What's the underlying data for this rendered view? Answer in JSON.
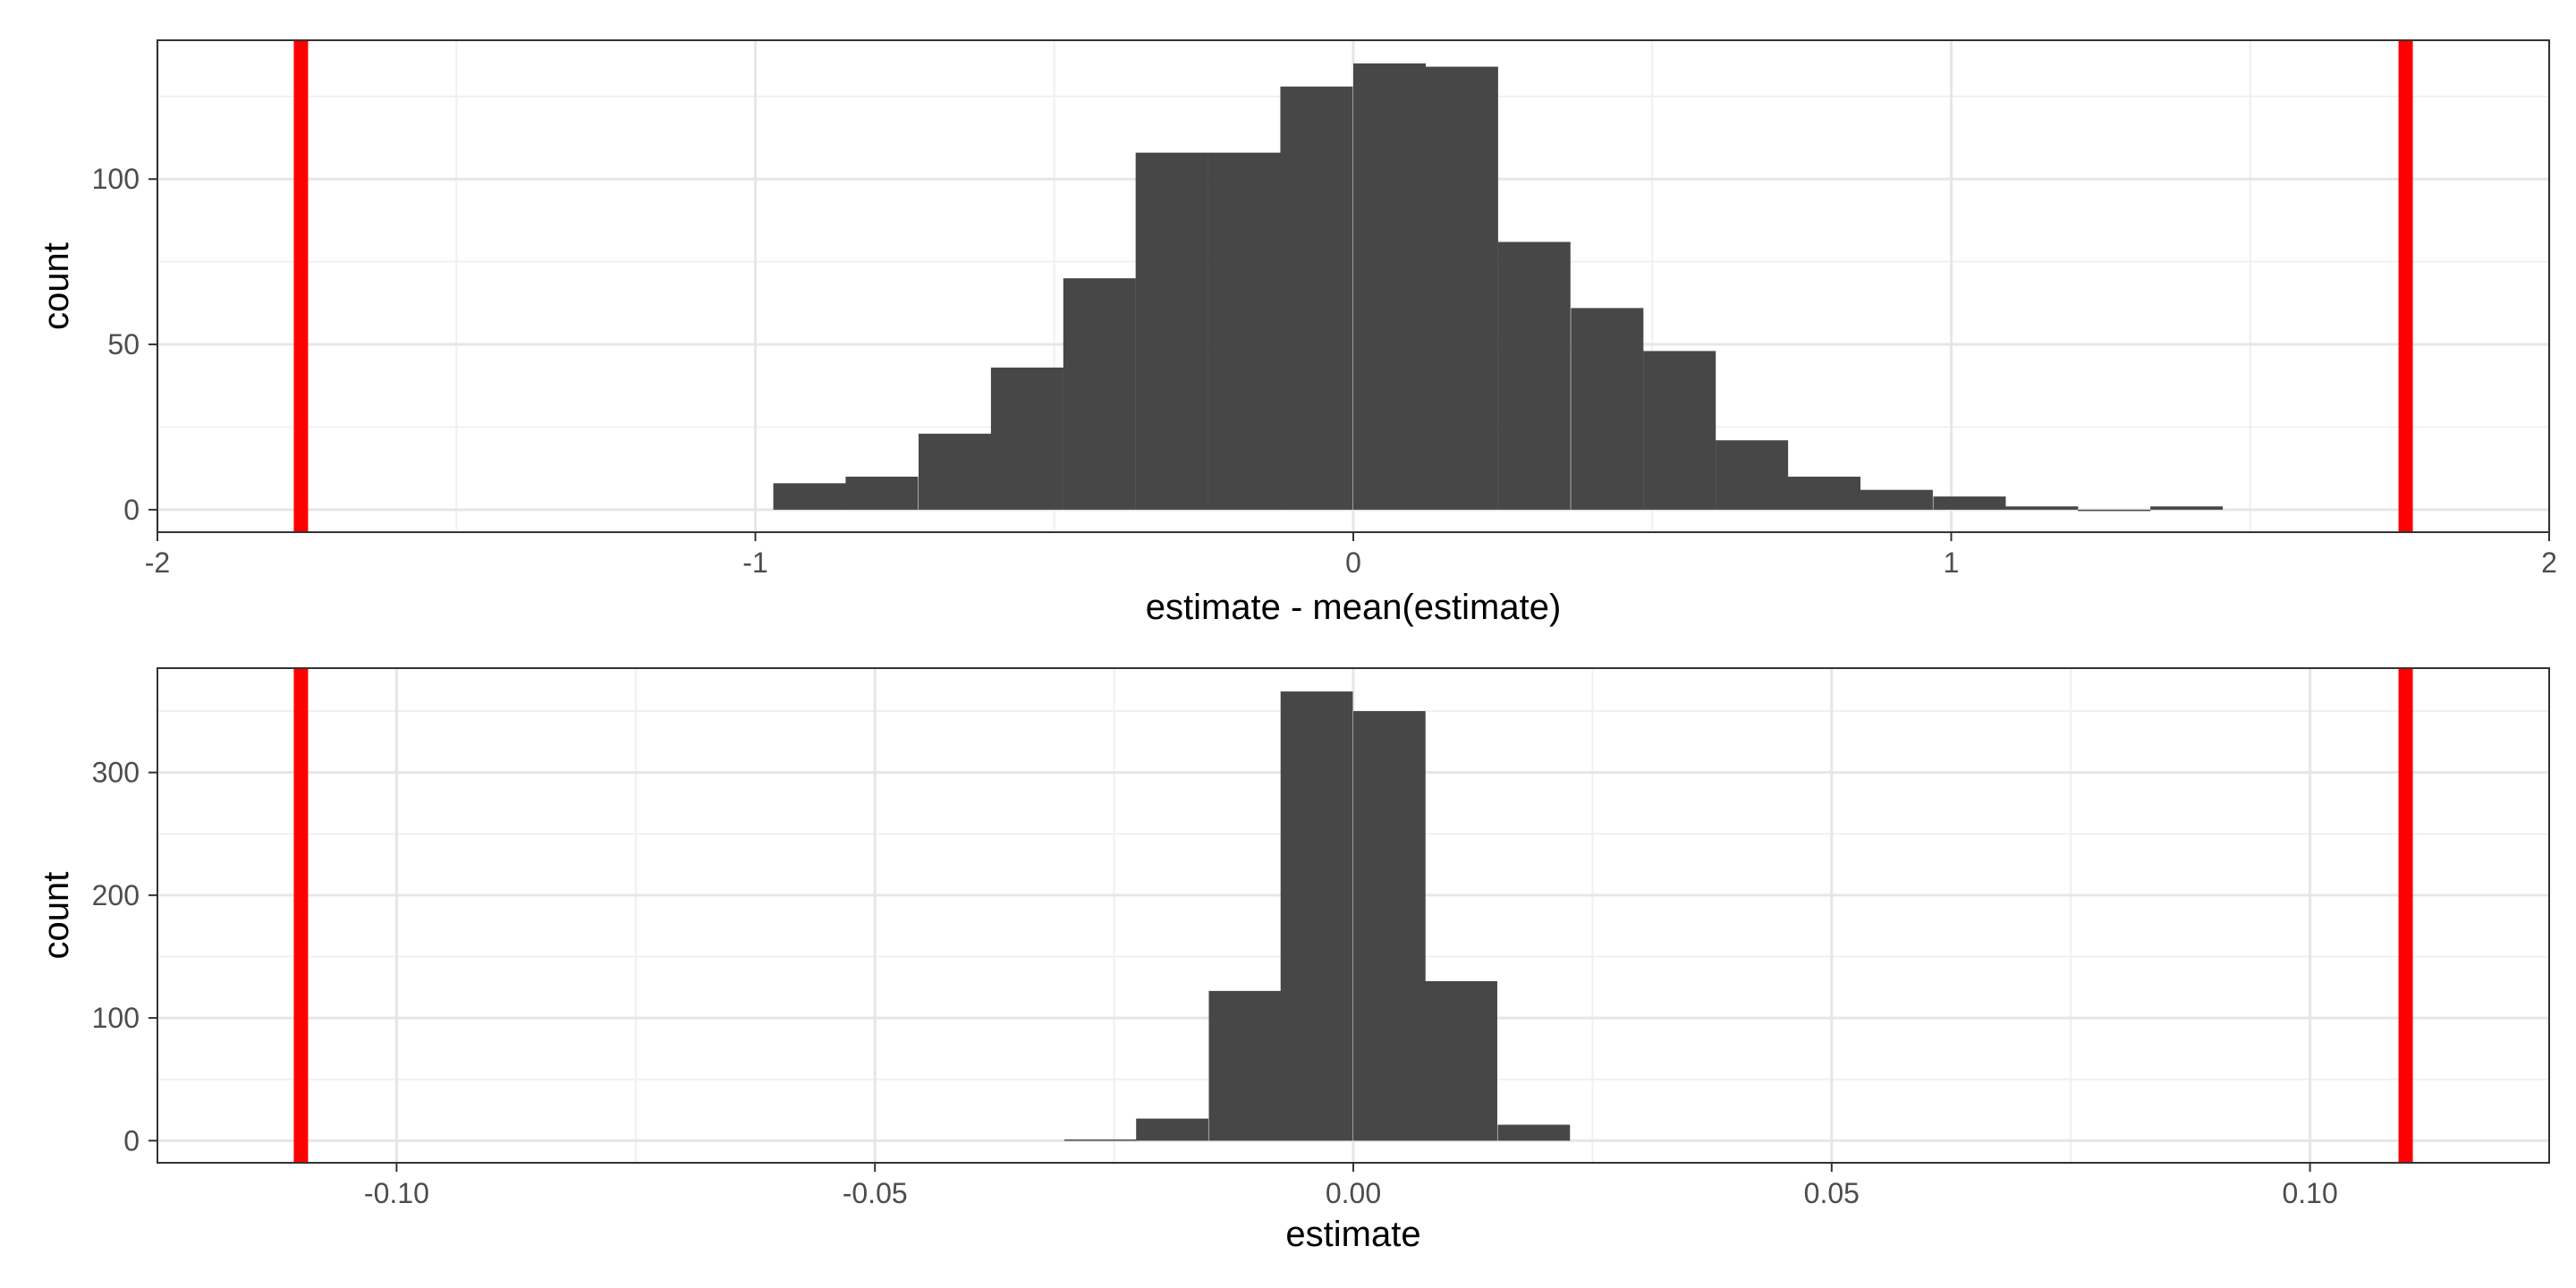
{
  "chart_data": [
    {
      "type": "bar",
      "xlabel": "estimate - mean(estimate)",
      "ylabel": "count",
      "xlim": [
        -2,
        2
      ],
      "ylim": [
        -6.8,
        142
      ],
      "x_ticks": [
        -2,
        -1,
        0,
        1,
        2
      ],
      "x_tick_labels": [
        "-2",
        "-1",
        "0",
        "1",
        "2"
      ],
      "y_ticks": [
        0,
        50,
        100
      ],
      "y_tick_labels": [
        "0",
        "50",
        "100"
      ],
      "grid": true,
      "bin_width": 0.1212,
      "bins": [
        {
          "x0": -0.97,
          "count": 8
        },
        {
          "x0": -0.849,
          "count": 10
        },
        {
          "x0": -0.727,
          "count": 23
        },
        {
          "x0": -0.606,
          "count": 43
        },
        {
          "x0": -0.485,
          "count": 70
        },
        {
          "x0": -0.364,
          "count": 108
        },
        {
          "x0": -0.243,
          "count": 108
        },
        {
          "x0": -0.122,
          "count": 128
        },
        {
          "x0": 0.0,
          "count": 135
        },
        {
          "x0": 0.121,
          "count": 134
        },
        {
          "x0": 0.242,
          "count": 81
        },
        {
          "x0": 0.364,
          "count": 61
        },
        {
          "x0": 0.485,
          "count": 48
        },
        {
          "x0": 0.606,
          "count": 21
        },
        {
          "x0": 0.727,
          "count": 10
        },
        {
          "x0": 0.848,
          "count": 6
        },
        {
          "x0": 0.97,
          "count": 4
        },
        {
          "x0": 1.091,
          "count": 1
        },
        {
          "x0": 1.212,
          "count": 0
        },
        {
          "x0": 1.333,
          "count": 1
        }
      ],
      "vlines": [
        -1.76,
        1.76
      ],
      "vline_color": "#ff0000",
      "bar_color": "#474747"
    },
    {
      "type": "bar",
      "xlabel": "estimate",
      "ylabel": "count",
      "xlim": [
        -0.125,
        0.125
      ],
      "ylim": [
        -18,
        385
      ],
      "x_ticks": [
        -0.1,
        -0.05,
        0.0,
        0.05,
        0.1
      ],
      "x_tick_labels": [
        "-0.10",
        "-0.05",
        "0.00",
        "0.05",
        "0.10"
      ],
      "y_ticks": [
        0,
        100,
        200,
        300
      ],
      "y_tick_labels": [
        "0",
        "100",
        "200",
        "300"
      ],
      "grid": true,
      "bin_width": 0.00755,
      "bins": [
        {
          "x0": -0.0302,
          "count": 1
        },
        {
          "x0": -0.0227,
          "count": 18
        },
        {
          "x0": -0.0151,
          "count": 122
        },
        {
          "x0": -0.0076,
          "count": 366
        },
        {
          "x0": 0.0,
          "count": 350
        },
        {
          "x0": 0.0075,
          "count": 130
        },
        {
          "x0": 0.0151,
          "count": 13
        }
      ],
      "vlines": [
        -0.11,
        0.11
      ],
      "vline_color": "#ff0000",
      "bar_color": "#474747"
    }
  ]
}
